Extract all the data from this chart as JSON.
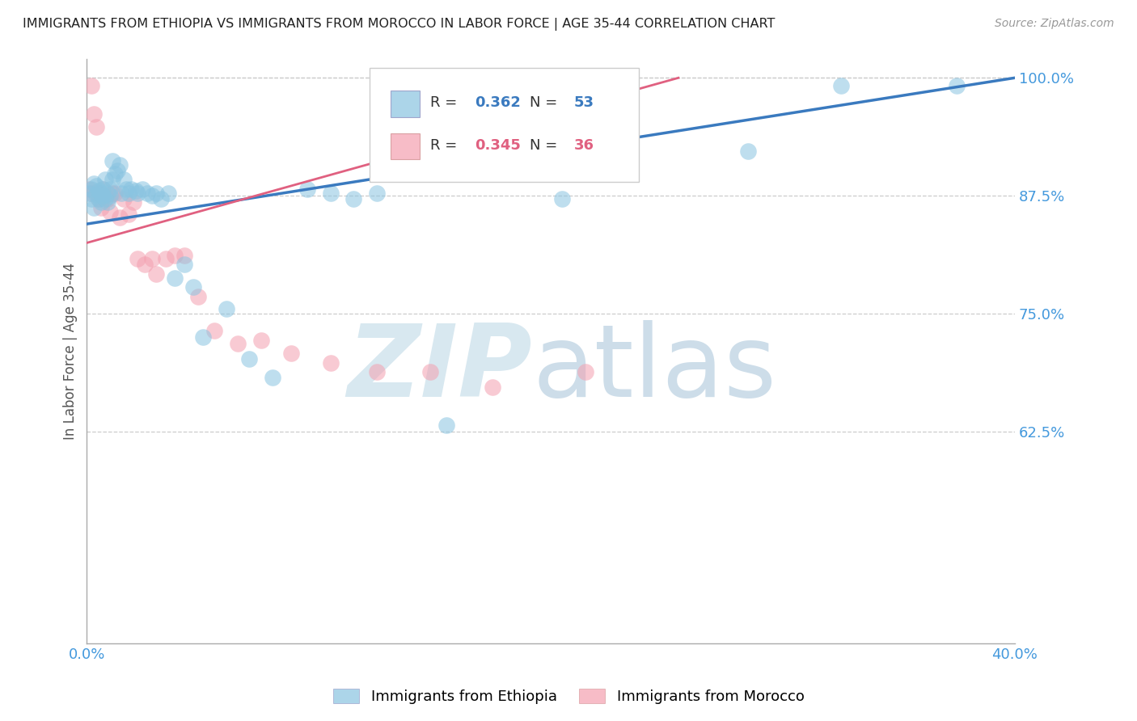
{
  "title": "IMMIGRANTS FROM ETHIOPIA VS IMMIGRANTS FROM MOROCCO IN LABOR FORCE | AGE 35-44 CORRELATION CHART",
  "source": "Source: ZipAtlas.com",
  "ylabel": "In Labor Force | Age 35-44",
  "x_min": 0.0,
  "x_max": 0.4,
  "y_min": 0.4,
  "y_max": 1.02,
  "x_tick_positions": [
    0.0,
    0.05,
    0.1,
    0.15,
    0.2,
    0.25,
    0.3,
    0.35,
    0.4
  ],
  "x_tick_labels": [
    "0.0%",
    "",
    "",
    "",
    "",
    "",
    "",
    "",
    "40.0%"
  ],
  "y_ticks_right": [
    0.625,
    0.75,
    0.875,
    1.0
  ],
  "y_tick_labels_right": [
    "62.5%",
    "75.0%",
    "87.5%",
    "100.0%"
  ],
  "ethiopia_R": 0.362,
  "ethiopia_N": 53,
  "morocco_R": 0.345,
  "morocco_N": 36,
  "ethiopia_color": "#89c4e1",
  "morocco_color": "#f4a0b0",
  "ethiopia_line_color": "#3a7abf",
  "morocco_line_color": "#e06080",
  "background_color": "#ffffff",
  "ethiopia_x": [
    0.001,
    0.002,
    0.002,
    0.003,
    0.003,
    0.004,
    0.004,
    0.005,
    0.005,
    0.006,
    0.006,
    0.007,
    0.007,
    0.008,
    0.008,
    0.009,
    0.009,
    0.01,
    0.01,
    0.011,
    0.011,
    0.012,
    0.013,
    0.014,
    0.015,
    0.016,
    0.017,
    0.018,
    0.019,
    0.021,
    0.022,
    0.024,
    0.026,
    0.028,
    0.03,
    0.032,
    0.035,
    0.038,
    0.042,
    0.046,
    0.05,
    0.06,
    0.07,
    0.08,
    0.095,
    0.105,
    0.115,
    0.125,
    0.155,
    0.205,
    0.285,
    0.325,
    0.375
  ],
  "ethiopia_y": [
    0.878,
    0.882,
    0.872,
    0.888,
    0.862,
    0.885,
    0.876,
    0.88,
    0.872,
    0.878,
    0.868,
    0.882,
    0.875,
    0.872,
    0.892,
    0.878,
    0.868,
    0.882,
    0.875,
    0.892,
    0.912,
    0.898,
    0.902,
    0.908,
    0.878,
    0.892,
    0.882,
    0.878,
    0.882,
    0.88,
    0.878,
    0.882,
    0.878,
    0.875,
    0.878,
    0.872,
    0.878,
    0.788,
    0.802,
    0.778,
    0.725,
    0.755,
    0.702,
    0.682,
    0.882,
    0.878,
    0.872,
    0.878,
    0.632,
    0.872,
    0.922,
    0.992,
    0.992
  ],
  "morocco_x": [
    0.001,
    0.002,
    0.002,
    0.003,
    0.004,
    0.005,
    0.005,
    0.006,
    0.006,
    0.007,
    0.008,
    0.009,
    0.01,
    0.011,
    0.012,
    0.014,
    0.016,
    0.018,
    0.02,
    0.022,
    0.025,
    0.028,
    0.03,
    0.034,
    0.038,
    0.042,
    0.048,
    0.055,
    0.065,
    0.075,
    0.088,
    0.105,
    0.125,
    0.148,
    0.175,
    0.215
  ],
  "morocco_y": [
    0.882,
    0.878,
    0.992,
    0.962,
    0.948,
    0.878,
    0.872,
    0.875,
    0.862,
    0.882,
    0.875,
    0.872,
    0.858,
    0.878,
    0.878,
    0.852,
    0.872,
    0.855,
    0.868,
    0.808,
    0.802,
    0.808,
    0.792,
    0.808,
    0.812,
    0.812,
    0.768,
    0.732,
    0.718,
    0.722,
    0.708,
    0.698,
    0.688,
    0.688,
    0.672,
    0.688
  ]
}
